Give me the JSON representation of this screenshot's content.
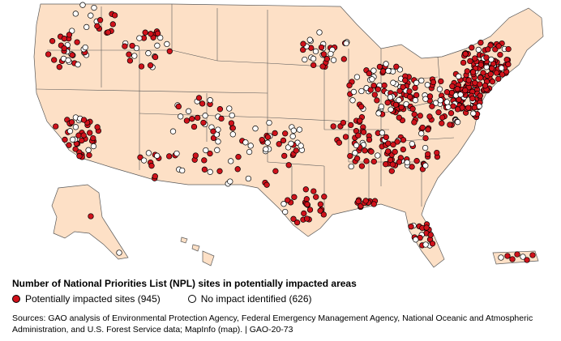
{
  "title": "Number of National Priorities List (NPL) sites in potentially impacted areas",
  "legend": {
    "impacted": {
      "label": "Potentially impacted sites (945)",
      "color": "#d0121b"
    },
    "none": {
      "label": "No impact identified (626)",
      "color": "#ffffff"
    }
  },
  "sources": "Sources: GAO analysis of Environmental Protection Agency, Federal Emergency Management Agency, National Oceanic and Atmospheric Administration, and U.S. Forest Service data; MapInfo (map).  |  GAO-20-73",
  "colors": {
    "land": "#fde0c6",
    "border": "#5a5a5a",
    "background": "#ffffff"
  }
}
